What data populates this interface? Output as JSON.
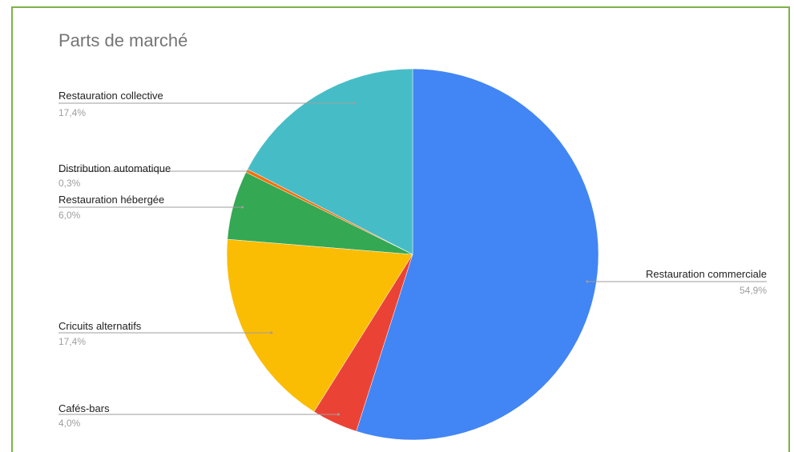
{
  "chart_data": {
    "type": "pie",
    "title": "Parts de marché",
    "slices": [
      {
        "label": "Restauration commerciale",
        "value": 54.9,
        "value_label": "54,9%",
        "color": "#4285f4"
      },
      {
        "label": "Cafés-bars",
        "value": 4.0,
        "value_label": "4,0%",
        "color": "#ea4335"
      },
      {
        "label": "Cricuits alternatifs",
        "value": 17.4,
        "value_label": "17,4%",
        "color": "#fbbc04"
      },
      {
        "label": "Restauration hébergée",
        "value": 6.0,
        "value_label": "6,0%",
        "color": "#34a853"
      },
      {
        "label": "Distribution automatique",
        "value": 0.3,
        "value_label": "0,3%",
        "color": "#ff6d01"
      },
      {
        "label": "Restauration collective",
        "value": 17.4,
        "value_label": "17,4%",
        "color": "#46bdc6"
      }
    ],
    "legend": "callout labels beside slices"
  }
}
